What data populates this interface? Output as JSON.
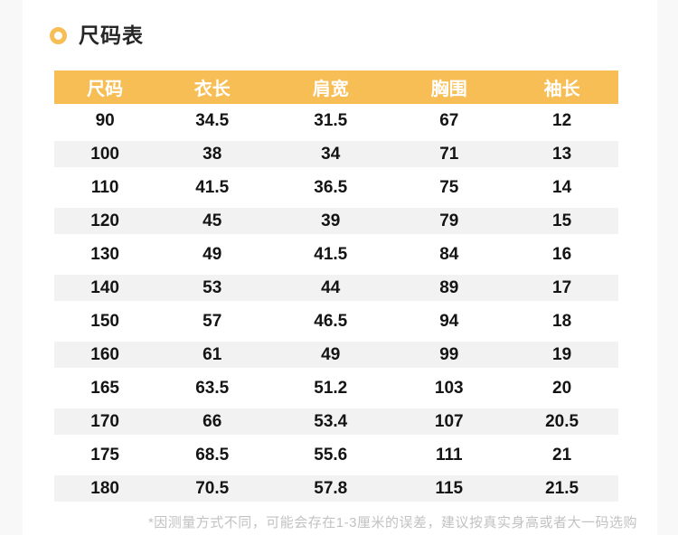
{
  "section": {
    "title": "尺码表",
    "title_icon": "ring-bullet",
    "footnote": "*因测量方式不同，可能会存在1-3厘米的误差，建议按真实身高或者大一码选购"
  },
  "colors": {
    "accent": "#F7BE56",
    "row_alt": "#F2F2F2",
    "page_margin": "#F8F8F8",
    "footnote_text": "#C2C2C2",
    "header_text": "#FFFFFF",
    "cell_text": "#141414"
  },
  "size_table": {
    "type": "table",
    "columns": [
      "尺码",
      "衣长",
      "肩宽",
      "胸围",
      "袖长"
    ],
    "rows": [
      [
        "90",
        "34.5",
        "31.5",
        "67",
        "12"
      ],
      [
        "100",
        "38",
        "34",
        "71",
        "13"
      ],
      [
        "110",
        "41.5",
        "36.5",
        "75",
        "14"
      ],
      [
        "120",
        "45",
        "39",
        "79",
        "15"
      ],
      [
        "130",
        "49",
        "41.5",
        "84",
        "16"
      ],
      [
        "140",
        "53",
        "44",
        "89",
        "17"
      ],
      [
        "150",
        "57",
        "46.5",
        "94",
        "18"
      ],
      [
        "160",
        "61",
        "49",
        "99",
        "19"
      ],
      [
        "165",
        "63.5",
        "51.2",
        "103",
        "20"
      ],
      [
        "170",
        "66",
        "53.4",
        "107",
        "20.5"
      ],
      [
        "175",
        "68.5",
        "55.6",
        "111",
        "21"
      ],
      [
        "180",
        "70.5",
        "57.8",
        "115",
        "21.5"
      ]
    ]
  }
}
